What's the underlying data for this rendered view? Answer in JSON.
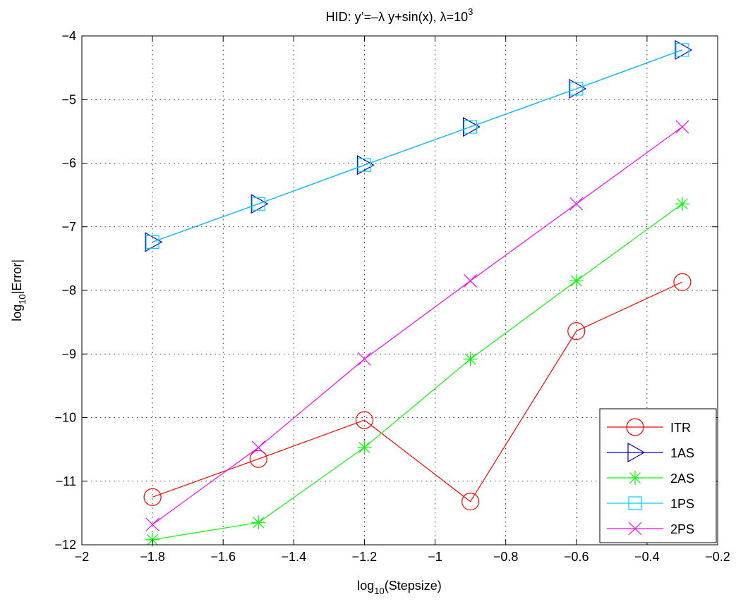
{
  "chart_data": {
    "type": "line",
    "title": {
      "main": "HID: y’=–λ y+sin(x), λ=10",
      "sup": "3"
    },
    "xlabel": {
      "pre": "log",
      "sub": "10",
      "post": "(Stepsize)"
    },
    "ylabel": {
      "pre": "log",
      "sub": "10",
      "post": "|Error|"
    },
    "xlim": [
      -2,
      -0.2
    ],
    "ylim": [
      -12,
      -4
    ],
    "xticks": [
      -2,
      -1.8,
      -1.6,
      -1.4,
      -1.2,
      -1,
      -0.8,
      -0.6,
      -0.4,
      -0.2
    ],
    "xtick_labels": [
      "−2",
      "−1.8",
      "−1.6",
      "−1.4",
      "−1.2",
      "−1",
      "−0.8",
      "−0.6",
      "−0.4",
      "−0.2"
    ],
    "yticks": [
      -12,
      -11,
      -10,
      -9,
      -8,
      -7,
      -6,
      -5,
      -4
    ],
    "ytick_labels": [
      "−12",
      "−11",
      "−10",
      "−9",
      "−8",
      "−7",
      "−6",
      "−5",
      "−4"
    ],
    "grid": true,
    "legend_position": "bottom-right",
    "x": [
      -1.8,
      -1.5,
      -1.2,
      -0.9,
      -0.6,
      -0.3
    ],
    "series": [
      {
        "name": "ITR",
        "color": "#ff0000",
        "marker": "circle",
        "values": [
          -11.25,
          -10.65,
          -10.04,
          -11.32,
          -8.64,
          -7.87
        ]
      },
      {
        "name": "1AS",
        "color": "#0000cc",
        "marker": "triangle",
        "values": [
          -7.24,
          -6.64,
          -6.03,
          -5.43,
          -4.83,
          -4.22
        ]
      },
      {
        "name": "2AS",
        "color": "#00ff00",
        "marker": "asterisk",
        "values": [
          -11.92,
          -11.65,
          -10.47,
          -9.08,
          -7.85,
          -6.64
        ]
      },
      {
        "name": "1PS",
        "color": "#00ccff",
        "marker": "square",
        "values": [
          -7.24,
          -6.64,
          -6.03,
          -5.43,
          -4.83,
          -4.22
        ]
      },
      {
        "name": "2PS",
        "color": "#ff00ff",
        "marker": "x",
        "values": [
          -11.68,
          -10.47,
          -9.08,
          -7.85,
          -6.64,
          -5.43
        ]
      }
    ]
  }
}
